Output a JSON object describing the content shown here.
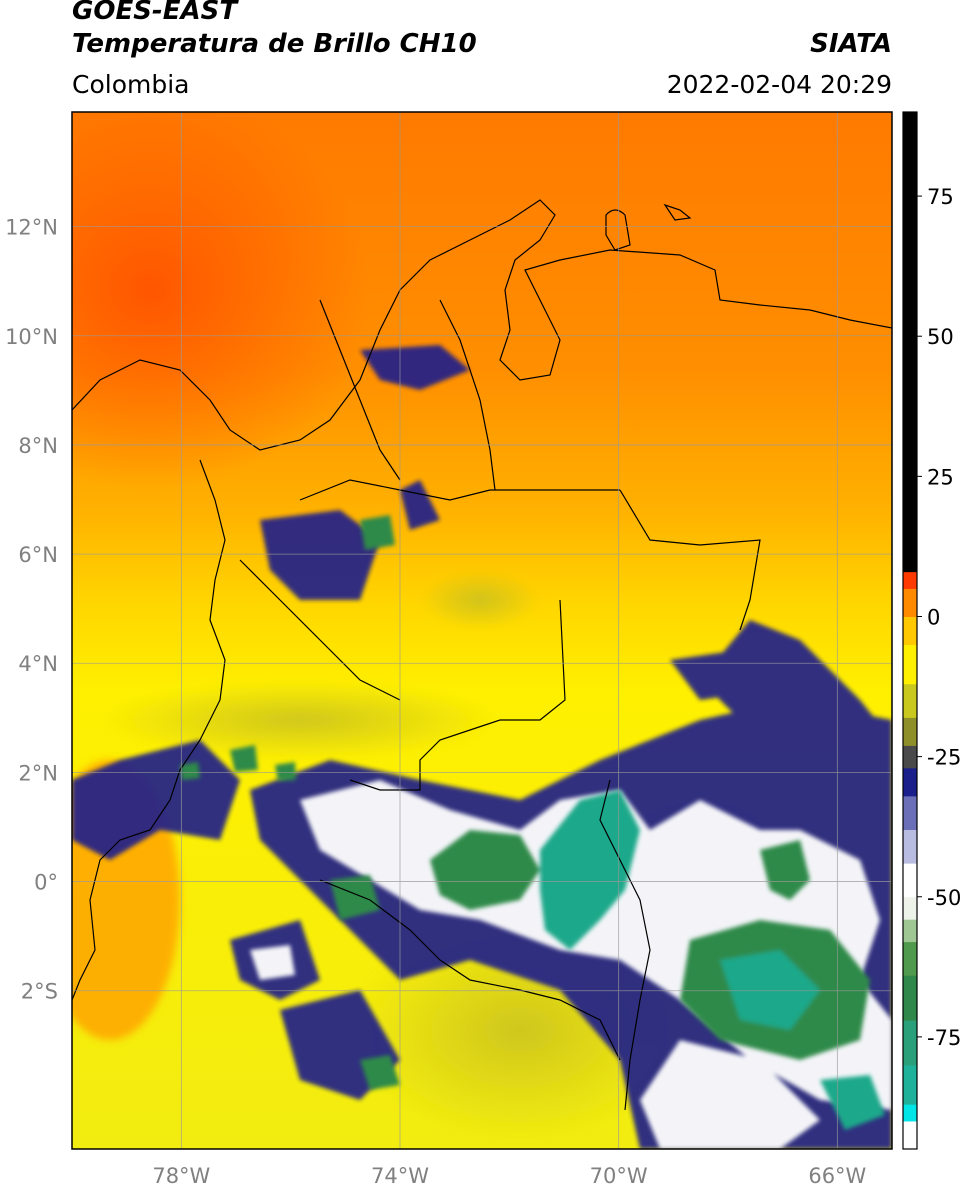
{
  "header": {
    "satellite": "GOES-EAST",
    "product": "Temperatura de Brillo CH10",
    "agency": "SIATA",
    "region": "Colombia",
    "datetime": "2022-02-04 20:29"
  },
  "map": {
    "lon_range": [
      -80,
      -65
    ],
    "lat_range": [
      -4.9,
      14.1
    ],
    "lat_ticks": [
      {
        "value": 12,
        "label": "12°N"
      },
      {
        "value": 10,
        "label": "10°N"
      },
      {
        "value": 8,
        "label": "8°N"
      },
      {
        "value": 6,
        "label": "6°N"
      },
      {
        "value": 4,
        "label": "4°N"
      },
      {
        "value": 2,
        "label": "2°N"
      },
      {
        "value": 0,
        "label": "0°"
      },
      {
        "value": -2,
        "label": "2°S"
      }
    ],
    "lon_ticks": [
      {
        "value": -78,
        "label": "78°W"
      },
      {
        "value": -74,
        "label": "74°W"
      },
      {
        "value": -70,
        "label": "70°W"
      },
      {
        "value": -66,
        "label": "66°W"
      }
    ],
    "colorbar": {
      "range": [
        -95,
        90
      ],
      "ticks": [
        {
          "value": 75,
          "label": "75"
        },
        {
          "value": 50,
          "label": "50"
        },
        {
          "value": 25,
          "label": "25"
        },
        {
          "value": 0,
          "label": "0"
        },
        {
          "value": -25,
          "label": "-25"
        },
        {
          "value": -50,
          "label": "-50"
        },
        {
          "value": -75,
          "label": "-75"
        }
      ],
      "segments": [
        {
          "from": -95,
          "to": -90,
          "color": "#ffffff"
        },
        {
          "from": -90,
          "to": -87,
          "color": "#00e5e5"
        },
        {
          "from": -87,
          "to": -80,
          "color": "#1fb29a"
        },
        {
          "from": -80,
          "to": -72,
          "color": "#2aa07a"
        },
        {
          "from": -72,
          "to": -64,
          "color": "#30884a"
        },
        {
          "from": -64,
          "to": -58,
          "color": "#4f9a4c"
        },
        {
          "from": -58,
          "to": -54,
          "color": "#9ec794"
        },
        {
          "from": -54,
          "to": -50,
          "color": "#eef3ea"
        },
        {
          "from": -50,
          "to": -44,
          "color": "#ffffff"
        },
        {
          "from": -44,
          "to": -38,
          "color": "#b8bce0"
        },
        {
          "from": -38,
          "to": -32,
          "color": "#6a6fb8"
        },
        {
          "from": -32,
          "to": -27,
          "color": "#1a1f8c"
        },
        {
          "from": -27,
          "to": -23,
          "color": "#4a4a4a"
        },
        {
          "from": -23,
          "to": -18,
          "color": "#8f8f2a"
        },
        {
          "from": -18,
          "to": -12,
          "color": "#c8c81e"
        },
        {
          "from": -12,
          "to": -5,
          "color": "#fff000"
        },
        {
          "from": -5,
          "to": 0,
          "color": "#ffc800"
        },
        {
          "from": 0,
          "to": 5,
          "color": "#ff8a00"
        },
        {
          "from": 5,
          "to": 8,
          "color": "#ff3a00"
        },
        {
          "from": 8,
          "to": 90,
          "color": "#000000"
        }
      ]
    },
    "palette": {
      "orange_deep": "#ff5a00",
      "orange": "#ff8c00",
      "amber": "#ffc000",
      "yellow": "#fff000",
      "olive": "#c9c41c",
      "navy": "#1a1f8c",
      "white": "#ffffff",
      "green": "#2f8a4a",
      "teal": "#1fb29a"
    }
  }
}
